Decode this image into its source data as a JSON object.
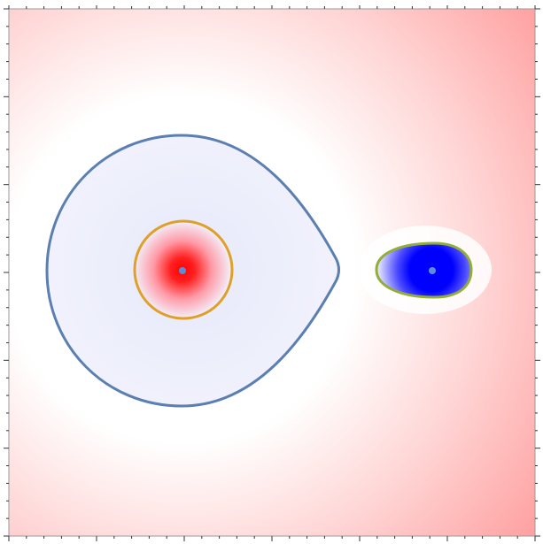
{
  "diagram": {
    "type": "potential-field-contour-plot",
    "background_colors": {
      "positive": "#ff8c8c",
      "neutral": "#ffffff",
      "negative": "#eef0fb"
    },
    "charges": [
      {
        "name": "positive-charge",
        "core_color": "#ff0000",
        "marker_color": "#5b8ed6"
      },
      {
        "name": "negative-charge",
        "core_color": "#0000ff",
        "marker_color": "#5b8ed6"
      }
    ],
    "contours": [
      {
        "name": "outer-contour",
        "color": "#5b7fb0"
      },
      {
        "name": "inner-contour",
        "color": "#dfa02a"
      },
      {
        "name": "negative-contour",
        "color": "#93ad3a"
      }
    ],
    "frame": {
      "tick_color": "#333333",
      "border_color": "#999999"
    }
  }
}
